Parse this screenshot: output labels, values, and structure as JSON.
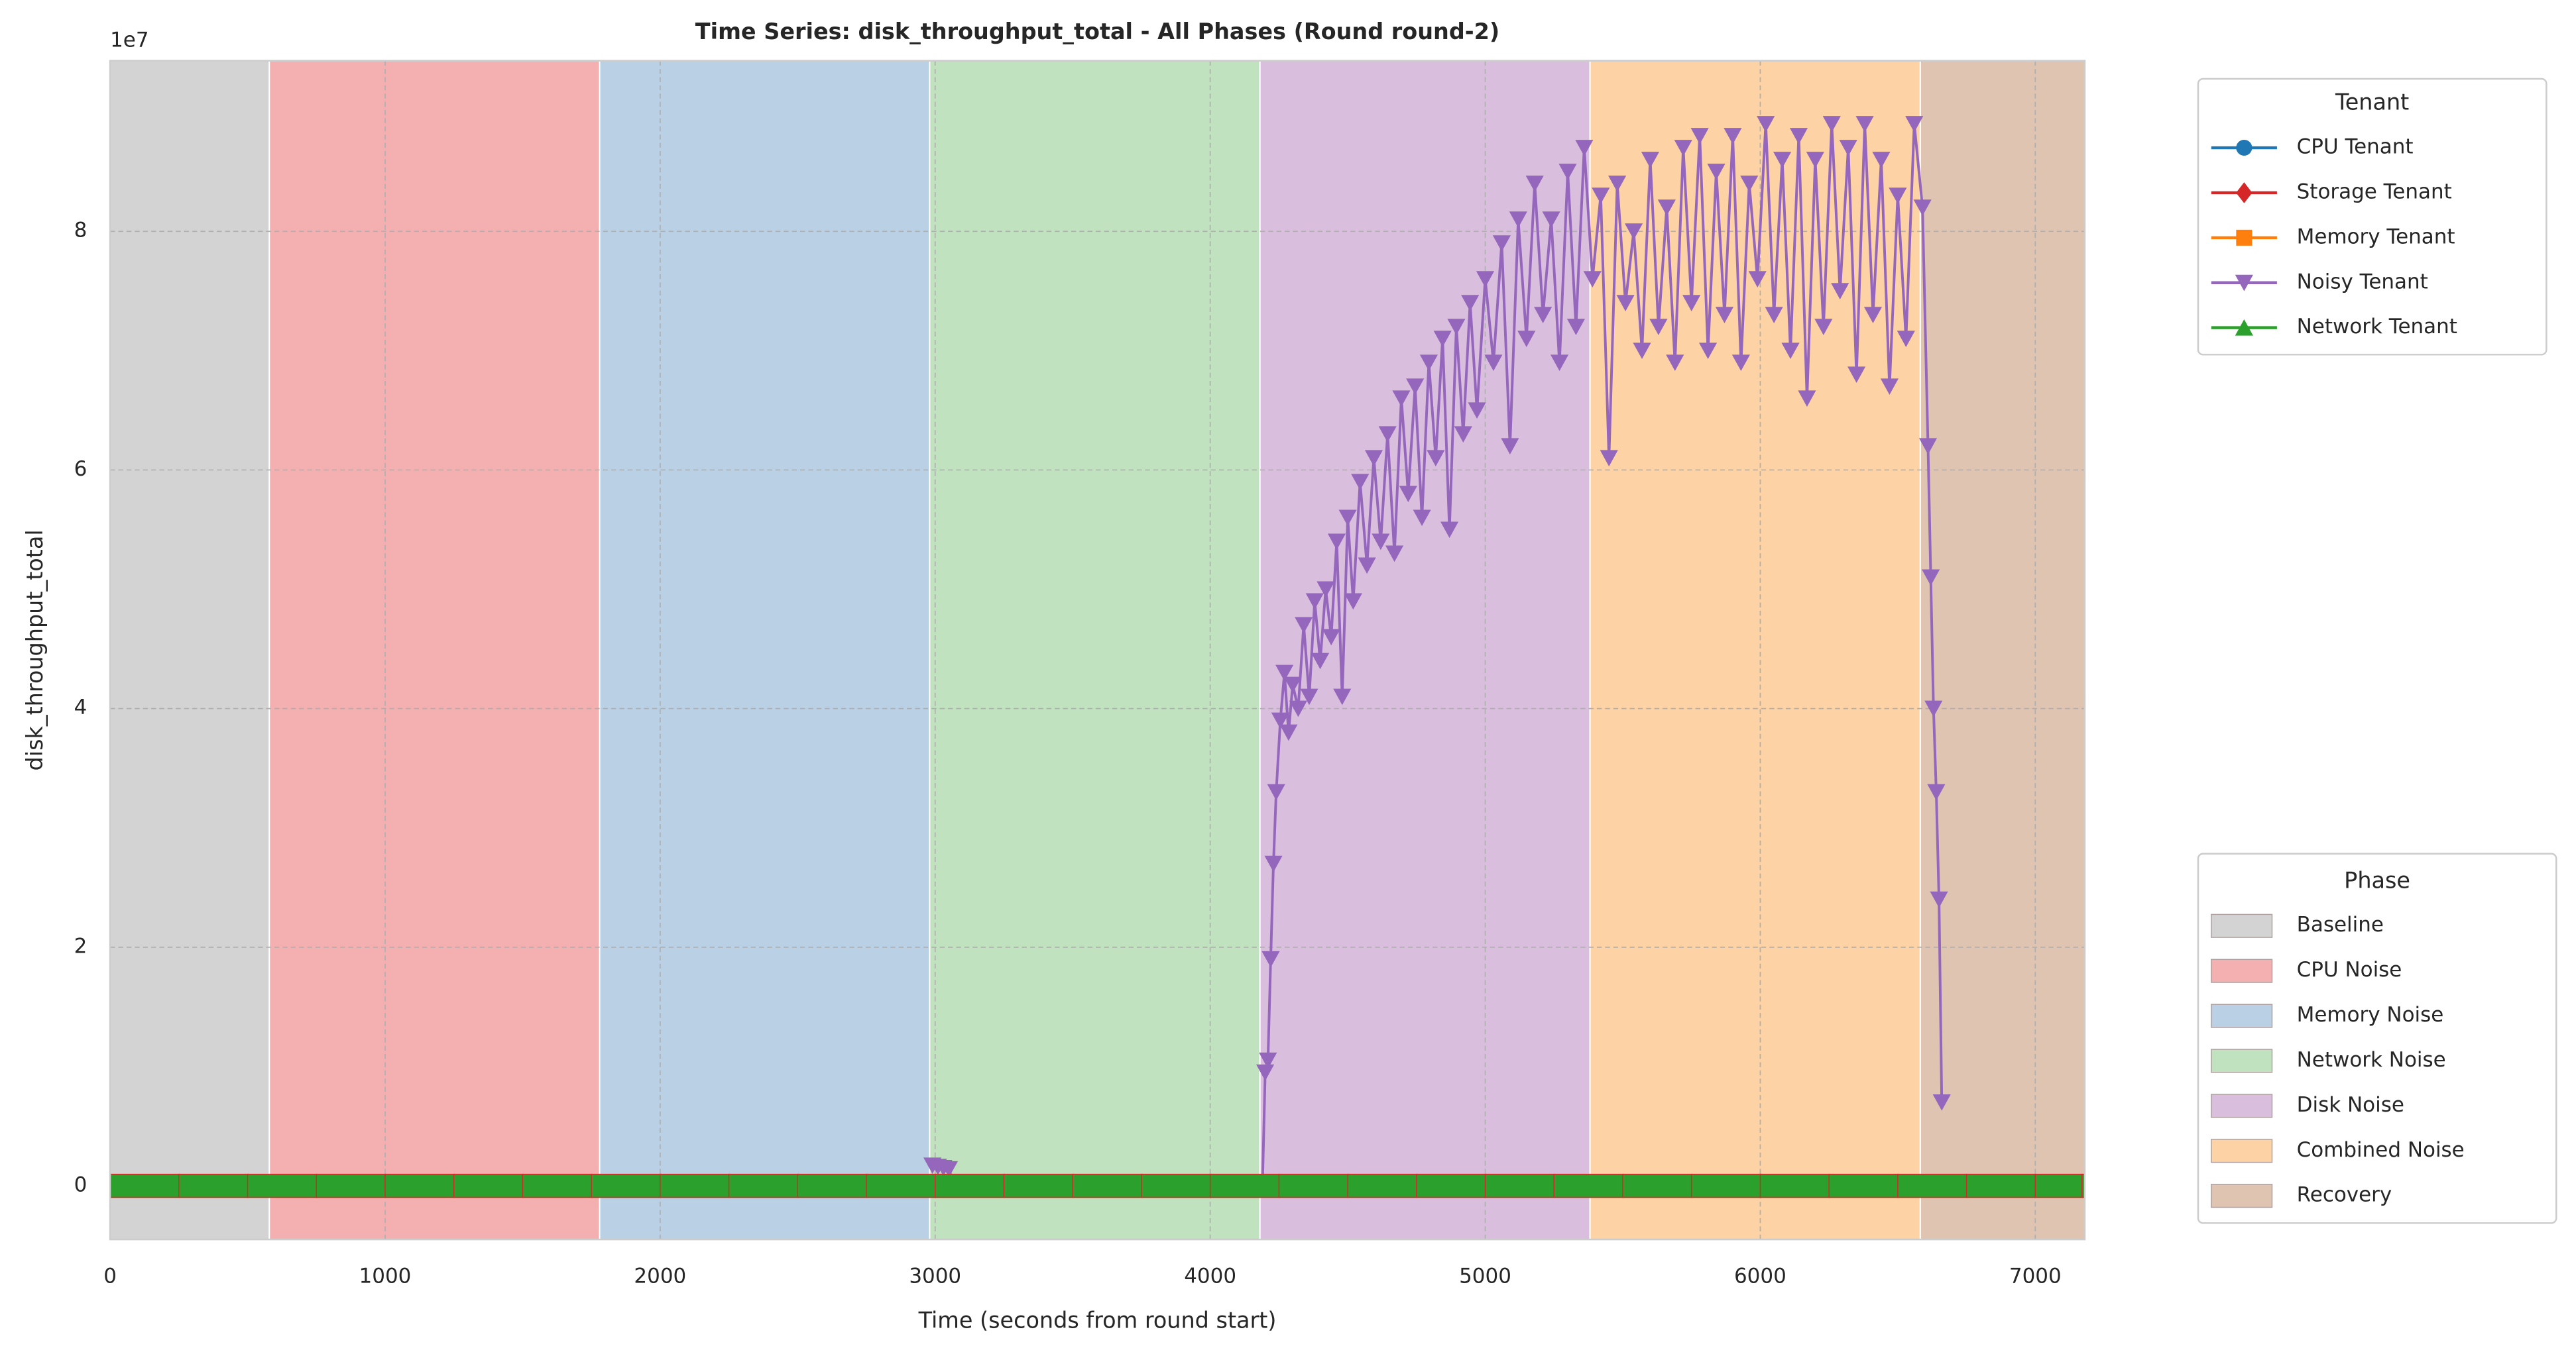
{
  "chart_data": {
    "type": "line",
    "title": "Time Series: disk_throughput_total - All Phases (Round round-2)",
    "x_label": "Time (seconds from round start)",
    "y_label": "disk_throughput_total",
    "y_offset_label": "1e7",
    "xlim": [
      0,
      7180
    ],
    "xticks": [
      0,
      1000,
      2000,
      3000,
      4000,
      5000,
      6000,
      7000
    ],
    "ylim": [
      -0.45,
      9.43
    ],
    "yticks": [
      0,
      2,
      4,
      6,
      8
    ],
    "grid": true,
    "legend_title": "Tenant",
    "legend_position": "upper right outside",
    "series": [
      {
        "name": "CPU Tenant",
        "color": "#1f77b4",
        "marker": "circle",
        "x": [
          0,
          250,
          500,
          750,
          1000,
          1250,
          1500,
          1750,
          2000,
          2250,
          2500,
          2750,
          3000,
          3250,
          3500,
          3750,
          4000,
          4250,
          4500,
          4750,
          5000,
          5250,
          5500,
          5750,
          6000,
          6250,
          6500,
          6750,
          7000,
          7170
        ],
        "values": [
          0,
          0,
          0,
          0,
          0,
          0,
          0,
          0,
          0,
          0,
          0,
          0,
          0,
          0,
          0,
          0,
          0,
          0,
          0,
          0,
          0,
          0,
          0,
          0,
          0,
          0,
          0,
          0,
          0,
          0
        ]
      },
      {
        "name": "Storage Tenant",
        "color": "#d62728",
        "marker": "diamond",
        "x": [
          0,
          250,
          500,
          750,
          1000,
          1250,
          1500,
          1750,
          2000,
          2250,
          2500,
          2750,
          3000,
          3250,
          3500,
          3750,
          4000,
          4250,
          4500,
          4750,
          5000,
          5250,
          5500,
          5750,
          6000,
          6250,
          6500,
          6750,
          7000,
          7170
        ],
        "values": [
          0,
          0,
          0,
          0,
          0,
          0,
          0,
          0,
          0,
          0,
          0,
          0,
          0,
          0,
          0,
          0,
          0,
          0,
          0,
          0,
          0,
          0,
          0,
          0,
          0,
          0,
          0,
          0,
          0,
          0
        ]
      },
      {
        "name": "Memory Tenant",
        "color": "#ff7f0e",
        "marker": "square",
        "x": [
          0,
          250,
          500,
          750,
          1000,
          1250,
          1500,
          1750,
          2000,
          2250,
          2500,
          2750,
          3000,
          3250,
          3500,
          3750,
          4000,
          4250,
          4500,
          4750,
          5000,
          5250,
          5500,
          5750,
          6000,
          6250,
          6500,
          6750,
          7000,
          7170
        ],
        "values": [
          0,
          0,
          0,
          0,
          0,
          0,
          0,
          0,
          0,
          0,
          0,
          0,
          0,
          0,
          0,
          0,
          0,
          0,
          0,
          0,
          0,
          0,
          0,
          0,
          0,
          0,
          0,
          0,
          0,
          0
        ]
      },
      {
        "name": "Noisy Tenant",
        "color": "#9467bd",
        "marker": "triangle-down",
        "x": [
          2990,
          3010,
          3030,
          3050,
          3070,
          4190,
          4200,
          4210,
          4220,
          4230,
          4240,
          4255,
          4270,
          4285,
          4300,
          4320,
          4340,
          4360,
          4380,
          4400,
          4420,
          4440,
          4460,
          4480,
          4500,
          4520,
          4545,
          4570,
          4595,
          4620,
          4645,
          4670,
          4695,
          4720,
          4745,
          4770,
          4795,
          4820,
          4845,
          4870,
          4895,
          4920,
          4945,
          4970,
          5000,
          5030,
          5060,
          5090,
          5120,
          5150,
          5180,
          5210,
          5240,
          5270,
          5300,
          5330,
          5360,
          5390,
          5420,
          5450,
          5480,
          5510,
          5540,
          5570,
          5600,
          5630,
          5660,
          5690,
          5720,
          5750,
          5780,
          5810,
          5840,
          5870,
          5900,
          5930,
          5960,
          5990,
          6020,
          6050,
          6080,
          6110,
          6140,
          6170,
          6200,
          6230,
          6260,
          6290,
          6320,
          6350,
          6380,
          6410,
          6440,
          6470,
          6500,
          6530,
          6560,
          6590,
          6610,
          6620,
          6630,
          6640,
          6650,
          6660
        ],
        "values": [
          0.17,
          0.16,
          0.15,
          0.14,
          0,
          0,
          0.95,
          1.05,
          1.9,
          2.7,
          3.3,
          3.9,
          4.3,
          3.8,
          4.2,
          4.0,
          4.7,
          4.1,
          4.9,
          4.4,
          5.0,
          4.6,
          5.4,
          4.1,
          5.6,
          4.9,
          5.9,
          5.2,
          6.1,
          5.4,
          6.3,
          5.3,
          6.6,
          5.8,
          6.7,
          5.6,
          6.9,
          6.1,
          7.1,
          5.5,
          7.2,
          6.3,
          7.4,
          6.5,
          7.6,
          6.9,
          7.9,
          6.2,
          8.1,
          7.1,
          8.4,
          7.3,
          8.1,
          6.9,
          8.5,
          7.2,
          8.7,
          7.6,
          8.3,
          6.1,
          8.4,
          7.4,
          8.0,
          7.0,
          8.6,
          7.2,
          8.2,
          6.9,
          8.7,
          7.4,
          8.8,
          7.0,
          8.5,
          7.3,
          8.8,
          6.9,
          8.4,
          7.6,
          8.9,
          7.3,
          8.6,
          7.0,
          8.8,
          6.6,
          8.6,
          7.2,
          8.9,
          7.5,
          8.7,
          6.8,
          8.9,
          7.3,
          8.6,
          6.7,
          8.3,
          7.1,
          8.9,
          8.2,
          6.2,
          5.1,
          4.0,
          3.3,
          2.4,
          0.7
        ]
      },
      {
        "name": "Network Tenant",
        "color": "#2ca02c",
        "marker": "triangle-up",
        "x": [
          0,
          250,
          500,
          750,
          1000,
          1250,
          1500,
          1750,
          2000,
          2250,
          2500,
          2750,
          3000,
          3250,
          3500,
          3750,
          4000,
          4250,
          4500,
          4750,
          5000,
          5250,
          5500,
          5750,
          6000,
          6250,
          6500,
          6750,
          7000,
          7170
        ],
        "values": [
          0,
          0,
          0,
          0,
          0,
          0,
          0,
          0,
          0,
          0,
          0,
          0,
          0,
          0,
          0,
          0,
          0,
          0,
          0,
          0,
          0,
          0,
          0,
          0,
          0,
          0,
          0,
          0,
          0,
          0
        ]
      }
    ],
    "phases_legend_title": "Phase",
    "phases": [
      {
        "name": "Baseline",
        "start": 0,
        "end": 579,
        "color": "#d3d3d3"
      },
      {
        "name": "CPU Noise",
        "start": 579,
        "end": 1780,
        "color": "#f4b0b0"
      },
      {
        "name": "Memory Noise",
        "start": 1780,
        "end": 2980,
        "color": "#bad0e4"
      },
      {
        "name": "Network Noise",
        "start": 2980,
        "end": 4181,
        "color": "#c1e2bf"
      },
      {
        "name": "Disk Noise",
        "start": 4181,
        "end": 5381,
        "color": "#d9bfdd"
      },
      {
        "name": "Combined Noise",
        "start": 5381,
        "end": 6582,
        "color": "#fdd3a5"
      },
      {
        "name": "Recovery",
        "start": 6582,
        "end": 7180,
        "color": "#dfc4b2"
      }
    ]
  }
}
